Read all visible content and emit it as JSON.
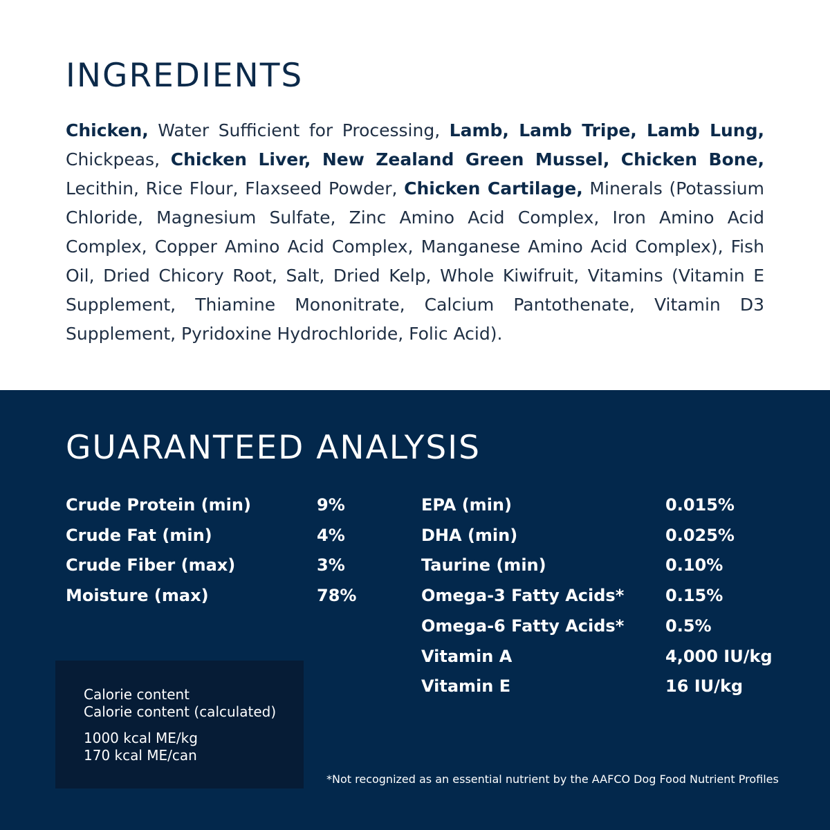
{
  "ingredients": {
    "title": "INGREDIENTS",
    "segments": [
      {
        "text": "Chicken,",
        "bold": true
      },
      {
        "text": " Water Sufficient for Processing, ",
        "bold": false
      },
      {
        "text": "Lamb, Lamb Tripe, Lamb Lung,",
        "bold": true
      },
      {
        "text": " Chickpeas, ",
        "bold": false
      },
      {
        "text": "Chicken Liver, New Zealand Green Mussel, Chicken Bone,",
        "bold": true
      },
      {
        "text": " Lecithin, Rice Flour, Flaxseed Powder, ",
        "bold": false
      },
      {
        "text": "Chicken Cartilage,",
        "bold": true
      },
      {
        "text": " Minerals (Potassium Chloride, Magnesium Sulfate, Zinc Amino Acid Complex, Iron Amino Acid Complex, Copper Amino Acid Complex, Manganese Amino Acid Complex), Fish Oil, Dried Chicory Root, Salt, Dried Kelp, Whole Kiwifruit, Vitamins (Vitamin E Supplement, Thiamine Mononitrate, Calcium Pantothenate, Vitamin D3 Supplement, Pyridoxine Hydrochloride, Folic Acid).",
        "bold": false
      }
    ]
  },
  "analysis": {
    "title": "GUARANTEED ANALYSIS",
    "left": [
      {
        "name": "Crude Protein (min)",
        "value": "9%"
      },
      {
        "name": "Crude Fat (min)",
        "value": "4%"
      },
      {
        "name": "Crude Fiber (max)",
        "value": "3%"
      },
      {
        "name": "Moisture (max)",
        "value": "78%"
      }
    ],
    "right": [
      {
        "name": "EPA (min)",
        "value": "0.015%"
      },
      {
        "name": "DHA (min)",
        "value": "0.025%"
      },
      {
        "name": "Taurine (min)",
        "value": "0.10%"
      },
      {
        "name": "Omega-3 Fatty Acids*",
        "value": "0.15%"
      },
      {
        "name": "Omega-6 Fatty Acids*",
        "value": "0.5%"
      },
      {
        "name": "Vitamin A",
        "value": "4,000 IU/kg"
      },
      {
        "name": "Vitamin E",
        "value": "16 IU/kg"
      }
    ]
  },
  "calorie": {
    "line1": "Calorie content",
    "line2": "Calorie content (calculated)",
    "line3": "1000 kcal ME/kg",
    "line4": "170 kcal ME/can"
  },
  "footnote": "*Not recognized as an essential nutrient by the AAFCO Dog Food Nutrient Profiles",
  "colors": {
    "navy": "#03284c",
    "box": "#061c36",
    "heading": "#0c2a4a"
  }
}
